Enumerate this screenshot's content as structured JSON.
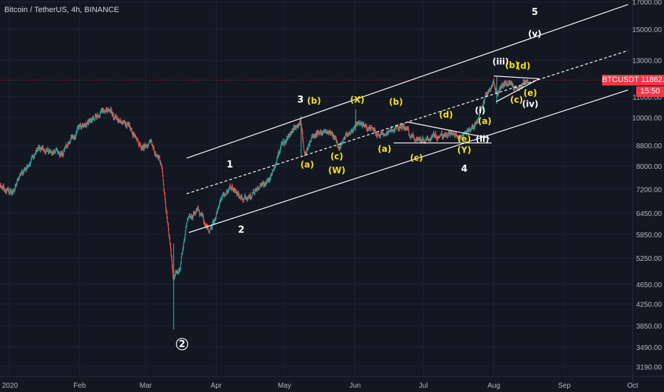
{
  "header": {
    "title": "Bitcoin / TetherUS, 4h, BINANCE"
  },
  "badges": {
    "symbol": "BTCUSDT",
    "price": "11862.78",
    "timer": "15:50"
  },
  "colors": {
    "background": "#131722",
    "grid": "#1f2331",
    "up_candle": "#26a69a",
    "down_candle": "#ef5350",
    "trendline": "#ffffff",
    "wave_white": "#ffffff",
    "wave_yellow": "#f5e11c",
    "badge": "#f23645",
    "axis_text": "#b2b5be"
  },
  "chart_data": {
    "type": "candlestick",
    "title": "Bitcoin / TetherUS, 4h, BINANCE",
    "x_axis": {
      "ticks": [
        {
          "label": "2020",
          "date": "2020-01-01"
        },
        {
          "label": "Feb",
          "date": "2020-02-01"
        },
        {
          "label": "Mar",
          "date": "2020-03-01"
        },
        {
          "label": "Apr",
          "date": "2020-04-01"
        },
        {
          "label": "May",
          "date": "2020-05-01"
        },
        {
          "label": "Jun",
          "date": "2020-06-01"
        },
        {
          "label": "Jul",
          "date": "2020-07-01"
        },
        {
          "label": "Aug",
          "date": "2020-08-01"
        },
        {
          "label": "Sep",
          "date": "2020-09-01"
        },
        {
          "label": "Oct",
          "date": "2020-10-01"
        }
      ],
      "range": [
        "2019-12-28",
        "2020-10-01"
      ]
    },
    "y_axis": {
      "scale": "log",
      "ticks": [
        "17000.00",
        "15000.00",
        "13000.00",
        "11000.00",
        "10000.00",
        "8800.00",
        "8000.00",
        "7200.00",
        "6450.00",
        "5850.00",
        "5250.00",
        "4650.00",
        "4250.00",
        "3850.00",
        "3490.00",
        "3190.00"
      ],
      "range": [
        3050,
        17150
      ],
      "position": "right"
    },
    "price_path": [
      {
        "date": "2019-12-28",
        "price": 7300
      },
      {
        "date": "2020-01-02",
        "price": 7050
      },
      {
        "date": "2020-01-08",
        "price": 7900
      },
      {
        "date": "2020-01-14",
        "price": 8700
      },
      {
        "date": "2020-01-19",
        "price": 8650
      },
      {
        "date": "2020-01-24",
        "price": 8450
      },
      {
        "date": "2020-01-31",
        "price": 9400
      },
      {
        "date": "2020-02-09",
        "price": 10100
      },
      {
        "date": "2020-02-13",
        "price": 10400
      },
      {
        "date": "2020-02-18",
        "price": 9900
      },
      {
        "date": "2020-02-21",
        "price": 9700
      },
      {
        "date": "2020-02-25",
        "price": 9300
      },
      {
        "date": "2020-02-28",
        "price": 8700
      },
      {
        "date": "2020-03-03",
        "price": 8900
      },
      {
        "date": "2020-03-08",
        "price": 8000
      },
      {
        "date": "2020-03-12",
        "price": 5400
      },
      {
        "date": "2020-03-13",
        "price": 4800
      },
      {
        "date": "2020-03-16",
        "price": 5000
      },
      {
        "date": "2020-03-19",
        "price": 6200
      },
      {
        "date": "2020-03-24",
        "price": 6600
      },
      {
        "date": "2020-03-29",
        "price": 5900
      },
      {
        "date": "2020-04-03",
        "price": 6800
      },
      {
        "date": "2020-04-07",
        "price": 7300
      },
      {
        "date": "2020-04-13",
        "price": 6850
      },
      {
        "date": "2020-04-18",
        "price": 7100
      },
      {
        "date": "2020-04-24",
        "price": 7500
      },
      {
        "date": "2020-04-30",
        "price": 8800
      },
      {
        "date": "2020-05-08",
        "price": 9800
      },
      {
        "date": "2020-05-10",
        "price": 8400
      },
      {
        "date": "2020-05-14",
        "price": 9300
      },
      {
        "date": "2020-05-20",
        "price": 9500
      },
      {
        "date": "2020-05-25",
        "price": 8750
      },
      {
        "date": "2020-06-01",
        "price": 9700
      },
      {
        "date": "2020-06-05",
        "price": 9600
      },
      {
        "date": "2020-06-11",
        "price": 9300
      },
      {
        "date": "2020-06-15",
        "price": 9400
      },
      {
        "date": "2020-06-22",
        "price": 9600
      },
      {
        "date": "2020-06-27",
        "price": 9100
      },
      {
        "date": "2020-07-02",
        "price": 9050
      },
      {
        "date": "2020-07-07",
        "price": 9200
      },
      {
        "date": "2020-07-13",
        "price": 9250
      },
      {
        "date": "2020-07-17",
        "price": 9150
      },
      {
        "date": "2020-07-21",
        "price": 9400
      },
      {
        "date": "2020-07-25",
        "price": 9800
      },
      {
        "date": "2020-07-28",
        "price": 10900
      },
      {
        "date": "2020-08-01",
        "price": 11700
      },
      {
        "date": "2020-08-02",
        "price": 11100
      },
      {
        "date": "2020-08-06",
        "price": 11700
      },
      {
        "date": "2020-08-09",
        "price": 11650
      },
      {
        "date": "2020-08-11",
        "price": 11300
      },
      {
        "date": "2020-08-15",
        "price": 11800
      },
      {
        "date": "2020-08-16",
        "price": 11862.78
      }
    ],
    "wicks": [
      {
        "date": "2020-03-13",
        "low": 3782,
        "high": 5600
      },
      {
        "date": "2020-05-08",
        "low": 8400,
        "high": 10070
      },
      {
        "date": "2020-06-01",
        "low": 9400,
        "high": 10390
      },
      {
        "date": "2020-08-02",
        "low": 10650,
        "high": 12090
      }
    ],
    "trendlines": [
      {
        "style": "solid",
        "from": {
          "date": "2020-03-19",
          "price": 8300
        },
        "to": {
          "date": "2020-09-29",
          "price": 16800
        }
      },
      {
        "style": "dashed",
        "from": {
          "date": "2020-03-19",
          "price": 7050
        },
        "to": {
          "date": "2020-09-29",
          "price": 13600
        }
      },
      {
        "style": "solid",
        "from": {
          "date": "2020-03-20",
          "price": 5900
        },
        "to": {
          "date": "2020-09-29",
          "price": 11350
        }
      },
      {
        "style": "solid",
        "from": {
          "date": "2020-06-18",
          "price": 8900
        },
        "to": {
          "date": "2020-07-31",
          "price": 8900
        }
      },
      {
        "style": "solid",
        "from": {
          "date": "2020-06-24",
          "price": 9800
        },
        "to": {
          "date": "2020-07-30",
          "price": 9100
        }
      },
      {
        "style": "solid",
        "from": {
          "date": "2020-08-01",
          "price": 12100
        },
        "to": {
          "date": "2020-08-21",
          "price": 11950
        }
      },
      {
        "style": "solid",
        "from": {
          "date": "2020-08-02",
          "price": 10750
        },
        "to": {
          "date": "2020-08-21",
          "price": 11950
        }
      }
    ],
    "annotations": [
      {
        "label": "5",
        "date": "2020-08-19",
        "price": 16000,
        "color": "white"
      },
      {
        "label": "(v)",
        "date": "2020-08-19",
        "price": 14500,
        "color": "white"
      },
      {
        "label": "(iii)",
        "date": "2020-08-04",
        "price": 12750,
        "color": "white"
      },
      {
        "label": "(b)",
        "date": "2020-08-09",
        "price": 12550,
        "color": "yellow"
      },
      {
        "label": "(d)",
        "date": "2020-08-14",
        "price": 12500,
        "color": "yellow"
      },
      {
        "label": "(e)",
        "date": "2020-08-17",
        "price": 11050,
        "color": "yellow"
      },
      {
        "label": "(c)",
        "date": "2020-08-11",
        "price": 10700,
        "color": "yellow"
      },
      {
        "label": "(iv)",
        "date": "2020-08-17",
        "price": 10500,
        "color": "white"
      },
      {
        "label": "(i)",
        "date": "2020-07-26",
        "price": 10200,
        "color": "white"
      },
      {
        "label": "(a)",
        "date": "2020-07-28",
        "price": 9700,
        "color": "yellow"
      },
      {
        "label": "(ii)",
        "date": "2020-07-27",
        "price": 8950,
        "color": "white"
      },
      {
        "label": "(e)",
        "date": "2020-07-19",
        "price": 8950,
        "color": "yellow"
      },
      {
        "label": "(Y)",
        "date": "2020-07-19",
        "price": 8500,
        "color": "yellow"
      },
      {
        "label": "4",
        "date": "2020-07-19",
        "price": 7800,
        "color": "white"
      },
      {
        "label": "(d)",
        "date": "2020-07-11",
        "price": 10000,
        "color": "yellow"
      },
      {
        "label": "(b)",
        "date": "2020-06-19",
        "price": 10600,
        "color": "yellow"
      },
      {
        "label": "(a)",
        "date": "2020-06-14",
        "price": 8550,
        "color": "yellow"
      },
      {
        "label": "(c)",
        "date": "2020-06-28",
        "price": 8200,
        "color": "yellow"
      },
      {
        "label": "(X)",
        "date": "2020-06-02",
        "price": 10700,
        "color": "yellow"
      },
      {
        "label": "3",
        "date": "2020-05-08",
        "price": 10700,
        "color": "white"
      },
      {
        "label": "(b)",
        "date": "2020-05-14",
        "price": 10650,
        "color": "yellow"
      },
      {
        "label": "(a)",
        "date": "2020-05-11",
        "price": 7950,
        "color": "yellow"
      },
      {
        "label": "(c)",
        "date": "2020-05-24",
        "price": 8250,
        "color": "yellow"
      },
      {
        "label": "(W)",
        "date": "2020-05-24",
        "price": 7750,
        "color": "yellow"
      },
      {
        "label": "1",
        "date": "2020-04-07",
        "price": 7950,
        "color": "white"
      },
      {
        "label": "2",
        "date": "2020-04-12",
        "price": 5900,
        "color": "white"
      },
      {
        "label": "2",
        "date": "2020-03-17",
        "price": 3490,
        "color": "white",
        "circled": true
      }
    ],
    "grid": true,
    "legend": "none",
    "last_price": 11862.78
  }
}
